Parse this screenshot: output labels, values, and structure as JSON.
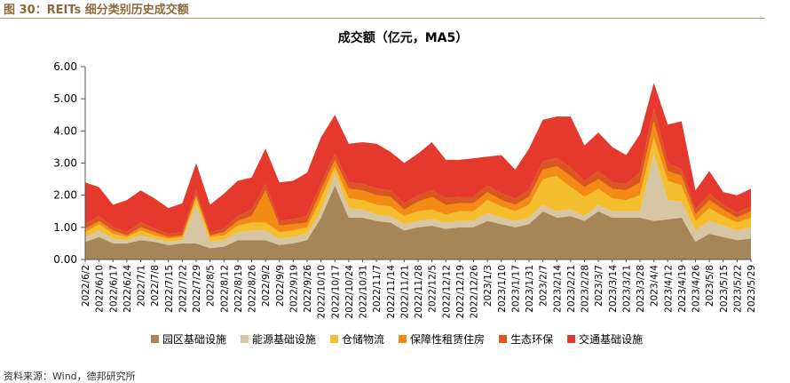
{
  "figure_label": "图 30：REITs 细分类别历史成交额",
  "source_note": "资料来源：Wind，德邦研究所",
  "colors": {
    "园区基础设施": "#a68558",
    "能源基础设施": "#d6c6a3",
    "仓储物流": "#f5be2e",
    "保障性租赁住房": "#f28a14",
    "生态环保": "#d9561f",
    "交通基础设施": "#e5392e"
  },
  "chart_data": {
    "type": "area",
    "stacked": true,
    "title": "成交额（亿元，MA5）",
    "xlabel": "",
    "ylabel": "",
    "ylim": [
      0,
      6
    ],
    "yticks": [
      "0.00",
      "1.00",
      "2.00",
      "3.00",
      "4.00",
      "5.00",
      "6.00"
    ],
    "x_ticks": [
      "2022/6/2",
      "2022/6/10",
      "2022/6/17",
      "2022/6/24",
      "2022/7/1",
      "2022/7/8",
      "2022/7/15",
      "2022/7/22",
      "2022/7/29",
      "2022/8/5",
      "2022/8/12",
      "2022/8/19",
      "2022/8/26",
      "2022/9/2",
      "2022/9/9",
      "2022/9/19",
      "2022/9/26",
      "2022/10/10",
      "2022/10/17",
      "2022/10/24",
      "2022/10/31",
      "2022/11/7",
      "2022/11/14",
      "2022/11/21",
      "2022/11/28",
      "2022/12/5",
      "2022/12/12",
      "2022/12/19",
      "2022/12/26",
      "2023/1/3",
      "2023/1/10",
      "2023/1/17",
      "2023/1/31",
      "2023/2/7",
      "2023/2/14",
      "2023/2/21",
      "2023/2/28",
      "2023/3/7",
      "2023/3/14",
      "2023/3/21",
      "2023/3/28",
      "2023/4/4",
      "2023/4/12",
      "2023/4/19",
      "2023/4/26",
      "2023/5/8",
      "2023/5/15",
      "2023/5/22",
      "2023/5/29"
    ],
    "grid": false,
    "legend_position": "bottom",
    "series": [
      {
        "name": "园区基础设施",
        "values": [
          0.55,
          0.7,
          0.5,
          0.5,
          0.6,
          0.55,
          0.45,
          0.5,
          0.5,
          0.35,
          0.4,
          0.6,
          0.6,
          0.6,
          0.45,
          0.5,
          0.6,
          1.3,
          2.3,
          1.3,
          1.3,
          1.2,
          1.15,
          0.9,
          1.0,
          1.05,
          0.95,
          1.0,
          1.0,
          1.2,
          1.1,
          1.0,
          1.1,
          1.5,
          1.3,
          1.35,
          1.2,
          1.5,
          1.3,
          1.3,
          1.3,
          1.2,
          1.25,
          1.3,
          0.55,
          0.8,
          0.7,
          0.6,
          0.65
        ]
      },
      {
        "name": "能源基础设施",
        "values": [
          0.15,
          0.2,
          0.15,
          0.1,
          0.15,
          0.1,
          0.1,
          0.1,
          1.2,
          0.2,
          0.2,
          0.25,
          0.3,
          0.3,
          0.2,
          0.2,
          0.2,
          0.2,
          0.4,
          0.3,
          0.25,
          0.2,
          0.2,
          0.2,
          0.2,
          0.2,
          0.2,
          0.2,
          0.2,
          0.25,
          0.2,
          0.2,
          0.2,
          0.2,
          0.2,
          0.2,
          0.15,
          0.2,
          0.2,
          0.2,
          0.2,
          2.1,
          0.6,
          0.5,
          0.35,
          0.4,
          0.35,
          0.3,
          0.35
        ]
      },
      {
        "name": "仓储物流",
        "values": [
          0.15,
          0.2,
          0.15,
          0.1,
          0.15,
          0.1,
          0.1,
          0.1,
          0.2,
          0.15,
          0.15,
          0.2,
          0.25,
          0.25,
          0.2,
          0.2,
          0.2,
          0.4,
          0.2,
          0.3,
          0.3,
          0.3,
          0.3,
          0.25,
          0.3,
          0.3,
          0.25,
          0.3,
          0.3,
          0.4,
          0.35,
          0.3,
          0.4,
          0.8,
          1.1,
          0.7,
          0.6,
          0.5,
          0.4,
          0.35,
          0.5,
          0.5,
          0.6,
          0.5,
          0.3,
          0.4,
          0.3,
          0.25,
          0.3
        ]
      },
      {
        "name": "保障性租赁住房",
        "values": [
          0.1,
          0.1,
          0.1,
          0.05,
          0.1,
          0.1,
          0.05,
          0.05,
          0.1,
          0.05,
          0.1,
          0.15,
          0.2,
          1.0,
          0.2,
          0.2,
          0.15,
          0.25,
          0.2,
          0.3,
          0.3,
          0.3,
          0.3,
          0.2,
          0.3,
          0.4,
          0.3,
          0.25,
          0.25,
          0.25,
          0.2,
          0.2,
          0.25,
          0.3,
          0.3,
          0.35,
          0.3,
          0.3,
          0.3,
          0.3,
          0.4,
          0.5,
          0.3,
          0.3,
          0.2,
          0.25,
          0.2,
          0.15,
          0.2
        ]
      },
      {
        "name": "生态环保",
        "values": [
          0.15,
          0.15,
          0.1,
          0.1,
          0.15,
          0.1,
          0.1,
          0.1,
          0.15,
          0.1,
          0.1,
          0.15,
          0.2,
          0.2,
          0.15,
          0.15,
          0.2,
          0.2,
          0.2,
          0.2,
          0.2,
          0.2,
          0.2,
          0.2,
          0.2,
          0.2,
          0.2,
          0.2,
          0.2,
          0.2,
          0.2,
          0.2,
          0.2,
          0.25,
          0.25,
          0.25,
          0.2,
          0.25,
          0.2,
          0.2,
          0.3,
          0.4,
          0.25,
          0.2,
          0.15,
          0.2,
          0.15,
          0.15,
          0.15
        ]
      },
      {
        "name": "交通基础设施",
        "values": [
          1.3,
          0.9,
          0.7,
          1.0,
          1.0,
          0.95,
          0.8,
          0.9,
          0.85,
          0.85,
          1.1,
          1.1,
          1.0,
          1.1,
          1.2,
          1.2,
          1.35,
          1.45,
          1.2,
          1.2,
          1.3,
          1.4,
          1.2,
          1.25,
          1.3,
          1.5,
          1.2,
          1.15,
          1.2,
          0.9,
          1.2,
          0.9,
          1.3,
          1.3,
          1.3,
          1.6,
          1.1,
          1.2,
          1.1,
          0.9,
          1.2,
          0.8,
          1.2,
          1.5,
          0.6,
          0.7,
          0.4,
          0.55,
          0.55
        ]
      }
    ]
  }
}
